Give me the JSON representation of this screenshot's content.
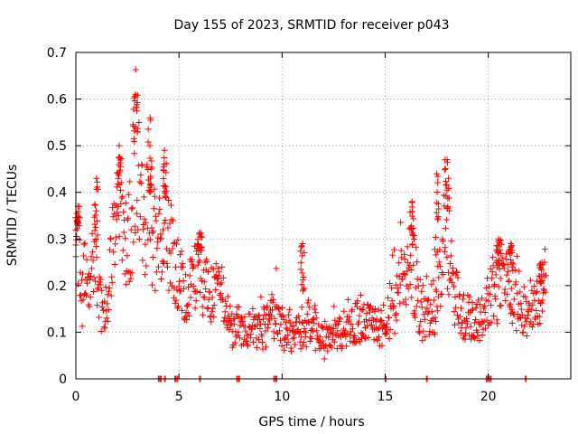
{
  "chart_data": {
    "type": "scatter",
    "title": "Day 155 of 2023, SRMTID for receiver p043",
    "xlabel": "GPS time / hours",
    "ylabel": "SRMTID / TECUs",
    "xlim": [
      0,
      24
    ],
    "ylim": [
      0,
      0.7
    ],
    "xticks": [
      0,
      5,
      10,
      15,
      20
    ],
    "xtick_labels": [
      "0",
      "5",
      "10",
      "15",
      "20"
    ],
    "yticks": [
      0,
      0.1,
      0.2,
      0.3,
      0.4,
      0.5,
      0.6,
      0.7
    ],
    "ytick_labels": [
      "0",
      "0.1",
      "0.2",
      "0.3",
      "0.4",
      "0.5",
      "0.6",
      "0.7"
    ],
    "grid": true,
    "marker": "+",
    "series_color": "#ff0000",
    "anchors": [
      [
        0.0,
        0.24
      ],
      [
        0.1,
        0.3
      ],
      [
        0.3,
        0.2
      ],
      [
        0.6,
        0.22
      ],
      [
        0.9,
        0.25
      ],
      [
        1.1,
        0.18
      ],
      [
        1.3,
        0.15
      ],
      [
        1.5,
        0.12
      ],
      [
        1.7,
        0.24
      ],
      [
        1.9,
        0.32
      ],
      [
        2.1,
        0.36
      ],
      [
        2.3,
        0.28
      ],
      [
        2.5,
        0.3
      ],
      [
        2.7,
        0.34
      ],
      [
        2.9,
        0.5
      ],
      [
        3.1,
        0.4
      ],
      [
        3.3,
        0.33
      ],
      [
        3.5,
        0.36
      ],
      [
        3.7,
        0.28
      ],
      [
        3.9,
        0.3
      ],
      [
        4.1,
        0.36
      ],
      [
        4.3,
        0.34
      ],
      [
        4.5,
        0.3
      ],
      [
        4.7,
        0.26
      ],
      [
        4.9,
        0.22
      ],
      [
        5.1,
        0.2
      ],
      [
        5.3,
        0.18
      ],
      [
        5.5,
        0.2
      ],
      [
        5.7,
        0.22
      ],
      [
        6.0,
        0.25
      ],
      [
        6.3,
        0.2
      ],
      [
        6.6,
        0.18
      ],
      [
        6.9,
        0.2
      ],
      [
        7.2,
        0.15
      ],
      [
        7.5,
        0.12
      ],
      [
        7.8,
        0.12
      ],
      [
        8.1,
        0.11
      ],
      [
        8.4,
        0.1
      ],
      [
        8.7,
        0.11
      ],
      [
        9.0,
        0.1
      ],
      [
        9.3,
        0.12
      ],
      [
        9.6,
        0.13
      ],
      [
        9.9,
        0.12
      ],
      [
        10.2,
        0.11
      ],
      [
        10.5,
        0.1
      ],
      [
        10.8,
        0.1
      ],
      [
        11.1,
        0.13
      ],
      [
        11.4,
        0.12
      ],
      [
        11.7,
        0.1
      ],
      [
        12.0,
        0.08
      ],
      [
        12.3,
        0.09
      ],
      [
        12.6,
        0.1
      ],
      [
        12.9,
        0.11
      ],
      [
        13.2,
        0.12
      ],
      [
        13.5,
        0.12
      ],
      [
        13.8,
        0.13
      ],
      [
        14.1,
        0.12
      ],
      [
        14.4,
        0.11
      ],
      [
        14.7,
        0.12
      ],
      [
        15.0,
        0.13
      ],
      [
        15.3,
        0.15
      ],
      [
        15.6,
        0.18
      ],
      [
        15.9,
        0.2
      ],
      [
        16.2,
        0.25
      ],
      [
        16.5,
        0.2
      ],
      [
        16.8,
        0.14
      ],
      [
        17.1,
        0.13
      ],
      [
        17.4,
        0.15
      ],
      [
        17.7,
        0.22
      ],
      [
        18.0,
        0.3
      ],
      [
        18.3,
        0.2
      ],
      [
        18.6,
        0.15
      ],
      [
        18.9,
        0.12
      ],
      [
        19.2,
        0.12
      ],
      [
        19.5,
        0.13
      ],
      [
        19.8,
        0.15
      ],
      [
        20.1,
        0.17
      ],
      [
        20.4,
        0.2
      ],
      [
        20.7,
        0.22
      ],
      [
        21.0,
        0.2
      ],
      [
        21.3,
        0.18
      ],
      [
        21.6,
        0.16
      ],
      [
        21.9,
        0.15
      ],
      [
        22.2,
        0.14
      ],
      [
        22.5,
        0.18
      ],
      [
        22.8,
        0.2
      ]
    ],
    "peaks": [
      [
        0.1,
        0.37
      ],
      [
        1.0,
        0.43
      ],
      [
        2.1,
        0.5
      ],
      [
        2.9,
        0.61
      ],
      [
        3.6,
        0.56
      ],
      [
        4.3,
        0.49
      ],
      [
        6.0,
        0.31
      ],
      [
        11.0,
        0.29
      ],
      [
        16.3,
        0.38
      ],
      [
        17.5,
        0.44
      ],
      [
        18.0,
        0.47
      ],
      [
        20.5,
        0.3
      ],
      [
        21.1,
        0.29
      ],
      [
        22.6,
        0.25
      ]
    ],
    "zero_points": [
      4.0,
      4.1,
      4.3,
      4.8,
      4.9,
      6.0,
      7.8,
      7.9,
      9.6,
      9.7,
      15.0,
      17.0,
      19.9,
      20.0,
      20.1,
      21.8
    ]
  }
}
